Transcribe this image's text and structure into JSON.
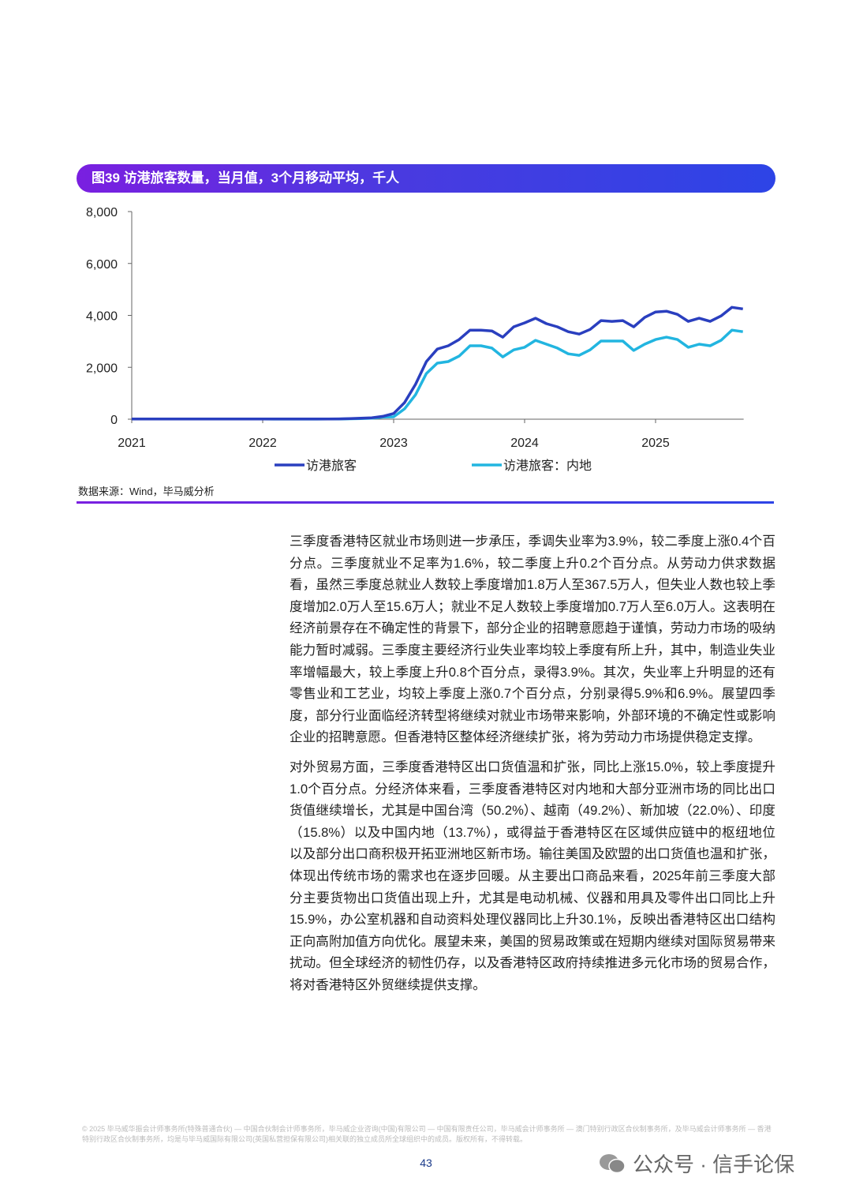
{
  "figure": {
    "title": "图39 访港旅客数量，当月值，3个月移动平均，千人",
    "source": "数据来源：Wind，毕马威分析"
  },
  "chart_data": {
    "type": "line",
    "title": "图39 访港旅客数量，当月值，3个月移动平均，千人",
    "ylim": [
      0,
      8000
    ],
    "y_ticks": [
      "0",
      "2,000",
      "4,000",
      "6,000",
      "8,000"
    ],
    "y_tick_values": [
      0,
      2000,
      4000,
      6000,
      8000
    ],
    "x_ticks": [
      "2021",
      "2022",
      "2023",
      "2024",
      "2025"
    ],
    "grid": false,
    "legend": "bottom",
    "x": [
      "2021-01",
      "2021-02",
      "2021-03",
      "2021-04",
      "2021-05",
      "2021-06",
      "2021-07",
      "2021-08",
      "2021-09",
      "2021-10",
      "2021-11",
      "2021-12",
      "2022-01",
      "2022-02",
      "2022-03",
      "2022-04",
      "2022-05",
      "2022-06",
      "2022-07",
      "2022-08",
      "2022-09",
      "2022-10",
      "2022-11",
      "2022-12",
      "2023-01",
      "2023-02",
      "2023-03",
      "2023-04",
      "2023-05",
      "2023-06",
      "2023-07",
      "2023-08",
      "2023-09",
      "2023-10",
      "2023-11",
      "2023-12",
      "2024-01",
      "2024-02",
      "2024-03",
      "2024-04",
      "2024-05",
      "2024-06",
      "2024-07",
      "2024-08",
      "2024-09",
      "2024-10",
      "2024-11",
      "2024-12",
      "2025-01",
      "2025-02",
      "2025-03",
      "2025-04",
      "2025-05",
      "2025-06",
      "2025-07",
      "2025-08",
      "2025-09"
    ],
    "series": [
      {
        "name": "访港旅客",
        "color": "#2a3fbf",
        "values": [
          8,
          8,
          8,
          8,
          8,
          8,
          8,
          8,
          8,
          8,
          8,
          8,
          8,
          6,
          5,
          5,
          5,
          5,
          8,
          12,
          20,
          35,
          55,
          110,
          220,
          640,
          1340,
          2220,
          2700,
          2830,
          3070,
          3430,
          3430,
          3400,
          3160,
          3560,
          3710,
          3890,
          3680,
          3560,
          3370,
          3280,
          3460,
          3800,
          3770,
          3800,
          3560,
          3920,
          4130,
          4160,
          4040,
          3770,
          3890,
          3770,
          3980,
          4310,
          4250
        ]
      },
      {
        "name": "访港旅客：内地",
        "color": "#22b5e0",
        "values": [
          5,
          5,
          5,
          5,
          5,
          5,
          5,
          5,
          5,
          5,
          5,
          5,
          5,
          4,
          3,
          3,
          3,
          3,
          5,
          8,
          14,
          25,
          40,
          80,
          90,
          400,
          940,
          1760,
          2160,
          2220,
          2430,
          2830,
          2830,
          2740,
          2400,
          2670,
          2770,
          3040,
          2890,
          2740,
          2520,
          2460,
          2670,
          3010,
          3010,
          3010,
          2650,
          2890,
          3070,
          3160,
          3070,
          2770,
          2890,
          2830,
          3040,
          3430,
          3370
        ]
      }
    ]
  },
  "body": {
    "paragraphs": [
      "三季度香港特区就业市场则进一步承压，季调失业率为3.9%，较二季度上涨0.4个百分点。三季度就业不足率为1.6%，较二季度上升0.2个百分点。从劳动力供求数据看，虽然三季度总就业人数较上季度增加1.8万人至367.5万人，但失业人数也较上季度增加2.0万人至15.6万人；就业不足人数较上季度增加0.7万人至6.0万人。这表明在经济前景存在不确定性的背景下，部分企业的招聘意愿趋于谨慎，劳动力市场的吸纳能力暂时减弱。三季度主要经济行业失业率均较上季度有所上升，其中，制造业失业率增幅最大，较上季度上升0.8个百分点，录得3.9%。其次，失业率上升明显的还有零售业和工艺业，均较上季度上涨0.7个百分点，分别录得5.9%和6.9%。展望四季度，部分行业面临经济转型将继续对就业市场带来影响，外部环境的不确定性或影响企业的招聘意愿。但香港特区整体经济继续扩张，将为劳动力市场提供稳定支撑。",
      "对外贸易方面，三季度香港特区出口货值温和扩张，同比上涨15.0%，较上季度提升1.0个百分点。分经济体来看，三季度香港特区对内地和大部分亚洲市场的同比出口货值继续增长，尤其是中国台湾（50.2%）、越南（49.2%）、新加坡（22.0%）、印度（15.8%）以及中国内地（13.7%），或得益于香港特区在区域供应链中的枢纽地位以及部分出口商积极开拓亚洲地区新市场。输往美国及欧盟的出口货值也温和扩张，体现出传统市场的需求也在逐步回暖。从主要出口商品来看，2025年前三季度大部分主要货物出口货值出现上升，尤其是电动机械、仪器和用具及零件出口同比上升15.9%，办公室机器和自动资料处理仪器同比上升30.1%，反映出香港特区出口结构正向高附加值方向优化。展望未来，美国的贸易政策或在短期内继续对国际贸易带来扰动。但全球经济的韧性仍存，以及香港特区政府持续推进多元化市场的贸易合作，将对香港特区外贸继续提供支撑。"
    ]
  },
  "footer": {
    "legal": "© 2025 毕马威华振会计师事务所(特殊普通合伙) — 中国合伙制会计师事务所，毕马威企业咨询(中国)有限公司 — 中国有限责任公司，毕马威会计师事务所 — 澳门特别行政区合伙制事务所，及毕马威会计师事务所 — 香港特别行政区合伙制事务所，均是与毕马威国际有限公司(英国私营担保有限公司)相关联的独立成员所全球组织中的成员。版权所有，不得转载。",
    "page_number": "43",
    "watermark": "公众号 · 信手论保"
  }
}
